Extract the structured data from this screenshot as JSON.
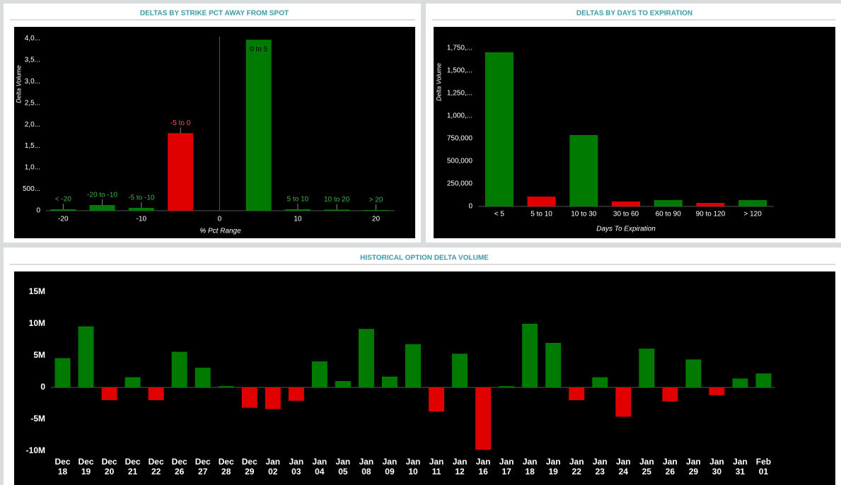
{
  "chart_data": [
    {
      "type": "bar",
      "title": "DELTAS BY STRIKE PCT AWAY FROM SPOT",
      "x_label": "% Pct Range",
      "y_label": "Delta Volume",
      "categories": [
        "< -20",
        "-20 to -10",
        "-5 to -10",
        "-5 to 0",
        "0 to 5",
        "5 to 10",
        "10 to 20",
        "> 20"
      ],
      "x": [
        -20,
        -15,
        -10,
        -5,
        5,
        10,
        15,
        20
      ],
      "values": [
        33000,
        131000,
        66000,
        1800000,
        3970000,
        33000,
        25000,
        16000
      ],
      "colors": [
        "#007a00",
        "#007a00",
        "#007a00",
        "#e00000",
        "#007a00",
        "#007a00",
        "#007a00",
        "#007a00"
      ],
      "xlim": [
        -22.2,
        22.4
      ],
      "xticks": [
        -20,
        -10,
        0,
        10,
        20
      ],
      "ylim": [
        0,
        4070000
      ],
      "yticks": [
        0,
        {
          "value": 500000,
          "label": "500..."
        },
        {
          "value": 1000000,
          "label": "1,0..."
        },
        {
          "value": 1500000,
          "label": "1,5..."
        },
        {
          "value": 2000000,
          "label": "2,0..."
        },
        {
          "value": 2500000,
          "label": "2,5..."
        },
        {
          "value": 3000000,
          "label": "3,0..."
        },
        {
          "value": 3500000,
          "label": "3,5..."
        },
        {
          "value": 4000000,
          "label": "4,0..."
        }
      ]
    },
    {
      "type": "bar",
      "title": "DELTAS BY DAYS TO EXPIRATION",
      "x_label": "Days To Expiration",
      "y_label": "Delta Volume",
      "categories": [
        "< 5",
        "5 to 10",
        "10 to 30",
        "30 to 60",
        "60 to 90",
        "90 to 120",
        "> 120"
      ],
      "values": [
        1703000,
        109000,
        789000,
        55000,
        70000,
        39000,
        70000
      ],
      "colors": [
        "#007a00",
        "#e00000",
        "#007a00",
        "#e00000",
        "#007a00",
        "#e00000",
        "#007a00"
      ],
      "ylim": [
        0,
        1890000
      ],
      "yticks": [
        0,
        {
          "value": 250000,
          "label": "250,000"
        },
        {
          "value": 500000,
          "label": "500,000"
        },
        {
          "value": 750000,
          "label": "750,000"
        },
        {
          "value": 1000000,
          "label": "1,000,..."
        },
        {
          "value": 1250000,
          "label": "1,250,..."
        },
        {
          "value": 1500000,
          "label": "1,500,..."
        },
        {
          "value": 1750000,
          "label": "1,750,..."
        }
      ]
    },
    {
      "type": "bar",
      "title": "HISTORICAL OPTION DELTA VOLUME",
      "categories": [
        "Dec\n18",
        "Dec\n19",
        "Dec\n20",
        "Dec\n21",
        "Dec\n22",
        "Dec\n26",
        "Dec\n27",
        "Dec\n28",
        "Dec\n29",
        "Jan\n02",
        "Jan\n03",
        "Jan\n04",
        "Jan\n05",
        "Jan\n08",
        "Jan\n09",
        "Jan\n10",
        "Jan\n11",
        "Jan\n12",
        "Jan\n16",
        "Jan\n17",
        "Jan\n18",
        "Jan\n19",
        "Jan\n22",
        "Jan\n23",
        "Jan\n24",
        "Jan\n25",
        "Jan\n26",
        "Jan\n29",
        "Jan\n30",
        "Jan\n31",
        "Feb\n01"
      ],
      "values": [
        4.6,
        9.6,
        -2.0,
        1.6,
        -2.0,
        5.6,
        3.1,
        0.2,
        -3.2,
        -3.4,
        -2.1,
        4.1,
        1.0,
        9.2,
        1.7,
        6.8,
        -3.8,
        5.3,
        -9.8,
        0.2,
        10.0,
        7.0,
        -2.0,
        1.6,
        -4.6,
        6.1,
        -2.2,
        4.4,
        -1.2,
        1.4,
        2.2
      ],
      "colors": [
        "#007a00",
        "#007a00",
        "#e00000",
        "#007a00",
        "#e00000",
        "#007a00",
        "#007a00",
        "#007a00",
        "#e00000",
        "#e00000",
        "#e00000",
        "#007a00",
        "#007a00",
        "#007a00",
        "#007a00",
        "#007a00",
        "#e00000",
        "#007a00",
        "#e00000",
        "#007a00",
        "#007a00",
        "#007a00",
        "#e00000",
        "#007a00",
        "#e00000",
        "#007a00",
        "#e00000",
        "#007a00",
        "#e00000",
        "#007a00",
        "#007a00"
      ],
      "ylim": [
        -10.5,
        17
      ],
      "yticks": [
        {
          "value": -10,
          "label": "-10M"
        },
        {
          "value": -5,
          "label": "-5M"
        },
        0,
        {
          "value": 5,
          "label": "5M"
        },
        {
          "value": 10,
          "label": "10M"
        },
        {
          "value": 15,
          "label": "15M"
        }
      ]
    }
  ]
}
